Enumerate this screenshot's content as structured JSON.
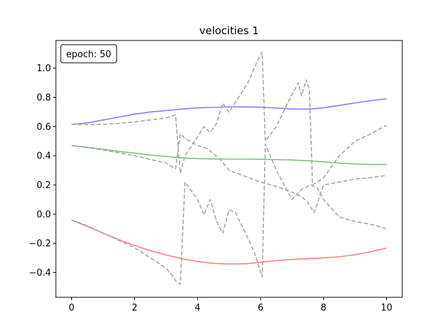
{
  "chart_data": {
    "type": "line",
    "title": "velocities 1",
    "xlabel": "",
    "ylabel": "",
    "xlim": [
      -0.5,
      10.5
    ],
    "ylim": [
      -0.57,
      1.19
    ],
    "xticks": [
      0,
      2,
      4,
      6,
      8,
      10
    ],
    "xtick_labels": [
      "0",
      "2",
      "4",
      "6",
      "8",
      "10"
    ],
    "yticks": [
      -0.4,
      -0.2,
      0.0,
      0.2,
      0.4,
      0.6,
      0.8,
      1.0
    ],
    "ytick_labels": [
      "−0.4",
      "−0.2",
      "0.0",
      "0.2",
      "0.4",
      "0.6",
      "0.8",
      "1.0"
    ],
    "grid": false,
    "annotation": "epoch: 50",
    "series": [
      {
        "color": "#7f7fff",
        "style": "solid",
        "x": [
          0,
          0.5,
          1,
          1.5,
          2,
          2.5,
          3,
          3.5,
          4,
          4.5,
          5,
          5.5,
          6,
          6.5,
          7,
          7.5,
          8,
          8.5,
          9,
          9.5,
          10
        ],
        "y": [
          0.615,
          0.625,
          0.645,
          0.665,
          0.685,
          0.7,
          0.71,
          0.72,
          0.728,
          0.732,
          0.735,
          0.735,
          0.733,
          0.727,
          0.72,
          0.72,
          0.728,
          0.745,
          0.762,
          0.777,
          0.79
        ]
      },
      {
        "color": "#7fbf7f",
        "style": "solid",
        "x": [
          0,
          0.5,
          1,
          1.5,
          2,
          2.5,
          3,
          3.5,
          4,
          4.5,
          5,
          5.5,
          6,
          6.5,
          7,
          7.5,
          8,
          8.5,
          9,
          9.5,
          10
        ],
        "y": [
          0.47,
          0.458,
          0.445,
          0.43,
          0.418,
          0.405,
          0.395,
          0.386,
          0.38,
          0.378,
          0.377,
          0.377,
          0.376,
          0.374,
          0.371,
          0.366,
          0.358,
          0.35,
          0.344,
          0.34,
          0.34
        ]
      },
      {
        "color": "#ff7f7f",
        "style": "solid",
        "x": [
          0,
          0.5,
          1,
          1.5,
          2,
          2.5,
          3,
          3.5,
          4,
          4.5,
          5,
          5.5,
          6,
          6.5,
          7,
          7.5,
          8,
          8.5,
          9,
          9.5,
          10
        ],
        "y": [
          -0.04,
          -0.085,
          -0.13,
          -0.175,
          -0.215,
          -0.25,
          -0.28,
          -0.305,
          -0.325,
          -0.337,
          -0.342,
          -0.34,
          -0.33,
          -0.318,
          -0.31,
          -0.305,
          -0.3,
          -0.292,
          -0.278,
          -0.258,
          -0.232
        ]
      },
      {
        "color": "#a6a6a6",
        "style": "dashed",
        "x": [
          0,
          0.5,
          1,
          1.5,
          2,
          2.5,
          3,
          3.3,
          3.45,
          3.6,
          4,
          4.2,
          4.4,
          4.6,
          4.8,
          5,
          5.3,
          5.6,
          5.9,
          6.05,
          6.15,
          6.5,
          6.9,
          7.2,
          7.3,
          7.45,
          7.55,
          7.65,
          8,
          8.5,
          9,
          9.5,
          10
        ],
        "y": [
          0.615,
          0.613,
          0.615,
          0.622,
          0.632,
          0.645,
          0.66,
          0.68,
          0.28,
          0.4,
          0.53,
          0.6,
          0.56,
          0.62,
          0.76,
          0.7,
          0.8,
          0.9,
          1.05,
          1.11,
          0.5,
          0.6,
          0.78,
          0.9,
          0.81,
          0.92,
          0.85,
          0.2,
          0.25,
          0.4,
          0.5,
          0.55,
          0.61
        ]
      },
      {
        "color": "#a6a6a6",
        "style": "dashed",
        "x": [
          0,
          0.5,
          1,
          1.5,
          2,
          2.5,
          3,
          3.3,
          3.45,
          3.6,
          4,
          4.3,
          4.7,
          5,
          5.5,
          6,
          6.5,
          7,
          7.3,
          7.5,
          7.7,
          8,
          8.5,
          9,
          9.5,
          10
        ],
        "y": [
          0.47,
          0.455,
          0.44,
          0.42,
          0.4,
          0.375,
          0.35,
          0.31,
          0.55,
          0.52,
          0.47,
          0.45,
          0.38,
          0.3,
          0.26,
          0.22,
          0.19,
          0.15,
          0.12,
          0.08,
          0.01,
          0.2,
          0.22,
          0.24,
          0.25,
          0.265
        ]
      },
      {
        "color": "#a6a6a6",
        "style": "dashed",
        "x": [
          0,
          0.5,
          1,
          1.5,
          2,
          2.5,
          3,
          3.2,
          3.35,
          3.45,
          3.6,
          4,
          4.2,
          4.4,
          4.6,
          4.8,
          5,
          5.2,
          5.5,
          5.8,
          6.05,
          6.15,
          6.5,
          7,
          7.3,
          7.6,
          7.8,
          8,
          8.5,
          9,
          9.5,
          10
        ],
        "y": [
          -0.04,
          -0.08,
          -0.13,
          -0.18,
          -0.23,
          -0.3,
          -0.37,
          -0.42,
          -0.47,
          -0.48,
          0.22,
          0.1,
          -0.005,
          0.1,
          -0.05,
          -0.13,
          0.03,
          0.01,
          -0.12,
          -0.26,
          -0.43,
          0.48,
          0.3,
          0.1,
          0.17,
          0.2,
          0.18,
          0.1,
          -0.02,
          -0.05,
          -0.07,
          -0.1
        ]
      }
    ]
  }
}
